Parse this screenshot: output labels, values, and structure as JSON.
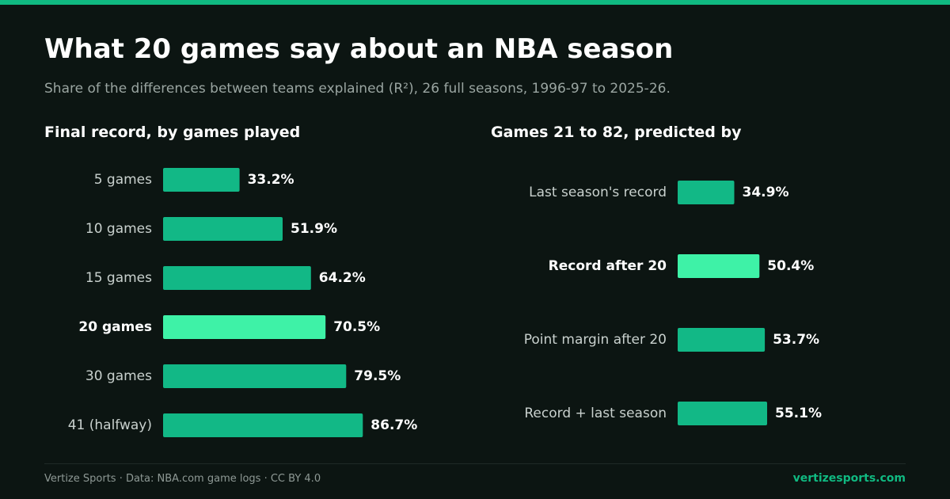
{
  "title": "What 20 games say about an NBA season",
  "subtitle": "Share of the differences between teams explained (R²), 26 full seasons, 1996-97 to 2025-26.",
  "colors": {
    "accent": "#10b981",
    "bar": "#12b886",
    "highlight": "#3ef2a7",
    "background": "#0c1512"
  },
  "chart_data": [
    {
      "type": "bar",
      "orientation": "horizontal",
      "title": "Final record, by games played",
      "categories": [
        "5 games",
        "10 games",
        "15 games",
        "20 games",
        "30 games",
        "41 (halfway)"
      ],
      "values": [
        33.2,
        51.9,
        64.2,
        70.5,
        79.5,
        86.7
      ],
      "value_labels": [
        "33.2%",
        "51.9%",
        "64.2%",
        "70.5%",
        "79.5%",
        "86.7%"
      ],
      "highlight": "20 games",
      "unit": "%",
      "xlim": [
        0,
        100
      ],
      "grid": false
    },
    {
      "type": "bar",
      "orientation": "horizontal",
      "title": "Games 21 to 82, predicted by",
      "categories": [
        "Last season's record",
        "Record after 20",
        "Point margin after 20",
        "Record + last season"
      ],
      "values": [
        34.9,
        50.4,
        53.7,
        55.1
      ],
      "value_labels": [
        "34.9%",
        "50.4%",
        "53.7%",
        "55.1%"
      ],
      "highlight": "Record after 20",
      "unit": "%",
      "xlim": [
        0,
        100
      ],
      "grid": false
    }
  ],
  "footer": {
    "credit": "Vertize Sports · Data: NBA.com game logs · CC BY 4.0",
    "site": "vertizesports.com"
  }
}
